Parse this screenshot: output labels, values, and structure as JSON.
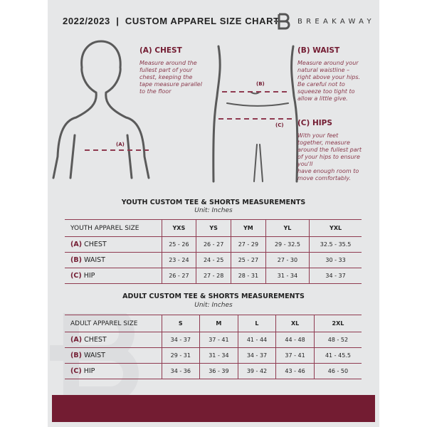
{
  "header": {
    "title": "2022/2023  |  CUSTOM APPAREL SIZE CHART",
    "brand": "BREAKAWAY"
  },
  "guide": {
    "chest": {
      "heading": "(A) CHEST",
      "text": "Measure around the\nfullest part of your\nchest, keeping the\ntape measure parallel\nto the floor",
      "marker": "(A)"
    },
    "waist": {
      "heading": "(B) WAIST",
      "text": "Measure around your\nnatural waistline –\nright above your hips.\nBe careful not to\nsqueeze too tight to\nallow a little give.",
      "marker": "(B)"
    },
    "hips": {
      "heading": "(C) HIPS",
      "text": "With your feet\ntogether, measure\naround the fullest part\nof your hips to ensure\nyou'll\nhave enough room to\nmove comfortably.",
      "marker": "(C)"
    }
  },
  "youth": {
    "title": "YOUTH CUSTOM TEE & SHORTS MEASUREMENTS",
    "unit": "Unit: Inches",
    "header": [
      "YOUTH APPAREL SIZE",
      "YXS",
      "YS",
      "YM",
      "YL",
      "YXL"
    ],
    "rows": [
      {
        "letter": "(A)",
        "label": "CHEST",
        "values": [
          "25 - 26",
          "26 - 27",
          "27 - 29",
          "29 - 32.5",
          "32.5 - 35.5"
        ]
      },
      {
        "letter": "(B)",
        "label": "WAIST",
        "values": [
          "23 - 24",
          "24 - 25",
          "25 - 27",
          "27 - 30",
          "30 - 33"
        ]
      },
      {
        "letter": "(C)",
        "label": "HIP",
        "values": [
          "26 - 27",
          "27 - 28",
          "28 - 31",
          "31 - 34",
          "34 - 37"
        ]
      }
    ]
  },
  "adult": {
    "title": "ADULT CUSTOM TEE & SHORTS MEASUREMENTS",
    "unit": "Unit: Inches",
    "header": [
      "ADULT APPAREL SIZE",
      "S",
      "M",
      "L",
      "XL",
      "2XL"
    ],
    "rows": [
      {
        "letter": "(A)",
        "label": "CHEST",
        "values": [
          "34 - 37",
          "37 - 41",
          "41 - 44",
          "44 - 48",
          "48 - 52"
        ]
      },
      {
        "letter": "(B)",
        "label": "WAIST",
        "values": [
          "29 - 31",
          "31 - 34",
          "34 - 37",
          "37 - 41",
          "41 - 45.5"
        ]
      },
      {
        "letter": "(C)",
        "label": "HIP",
        "values": [
          "34 - 36",
          "36 - 39",
          "39 - 42",
          "43 - 46",
          "46 - 50"
        ]
      }
    ]
  },
  "colors": {
    "accent": "#731c32",
    "page": "#e6e7e8"
  }
}
